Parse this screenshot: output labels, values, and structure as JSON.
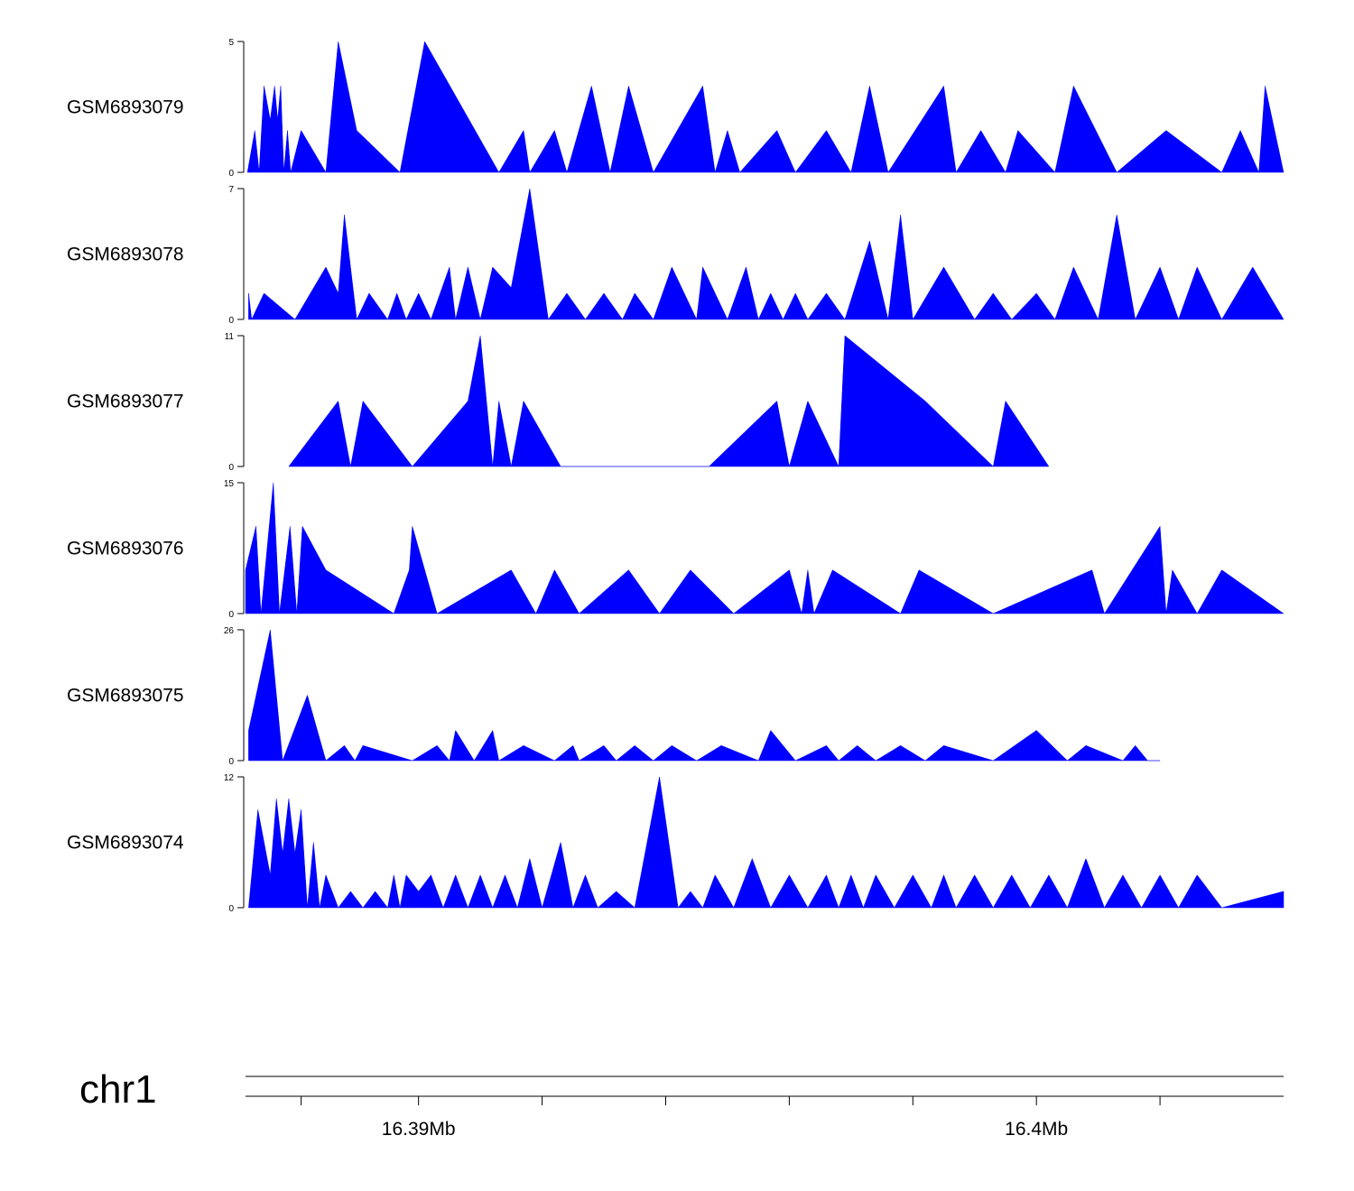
{
  "chart_data": {
    "type": "area",
    "fill_color": "#0000ff",
    "chromosome": "chr1",
    "x_range_mb": [
      16.3872,
      16.404
    ],
    "x_ticks": [
      {
        "value": 16.3881,
        "label": ""
      },
      {
        "value": 16.39,
        "label": "16.39Mb"
      },
      {
        "value": 16.392,
        "label": ""
      },
      {
        "value": 16.394,
        "label": ""
      },
      {
        "value": 16.396,
        "label": ""
      },
      {
        "value": 16.398,
        "label": ""
      },
      {
        "value": 16.4,
        "label": "16.4Mb"
      },
      {
        "value": 16.402,
        "label": ""
      }
    ],
    "tracks": [
      {
        "name": "GSM6893079",
        "ymax": 5,
        "ymin_label": "0",
        "ymax_label": "5",
        "x": [
          16.38723,
          16.38735,
          16.38742,
          16.3875,
          16.3876,
          16.38767,
          16.38772,
          16.38777,
          16.38782,
          16.38788,
          16.38793,
          16.3881,
          16.3885,
          16.3887,
          16.389,
          16.3897,
          16.3901,
          16.3913,
          16.3917,
          16.3918,
          16.3922,
          16.3924,
          16.3928,
          16.3931,
          16.3934,
          16.3938,
          16.3946,
          16.3948,
          16.395,
          16.3952,
          16.3958,
          16.3961,
          16.3966,
          16.397,
          16.3973,
          16.3976,
          16.3985,
          16.3987,
          16.3991,
          16.3995,
          16.3997,
          16.4003,
          16.4006,
          16.4013,
          16.4021,
          16.403,
          16.4033,
          16.4036,
          16.4037,
          16.404
        ],
        "y": [
          0,
          1.6,
          0,
          3.3,
          2,
          3.3,
          2,
          3.3,
          0,
          1.6,
          0,
          1.6,
          0,
          5,
          1.6,
          0,
          5,
          0,
          1.6,
          0,
          1.6,
          0,
          3.3,
          0,
          3.3,
          0,
          3.3,
          0,
          1.6,
          0,
          1.6,
          0,
          1.6,
          0,
          3.3,
          0,
          3.3,
          0,
          1.6,
          0,
          1.6,
          0,
          3.3,
          0,
          1.6,
          0,
          1.6,
          0,
          3.3,
          0
        ]
      },
      {
        "name": "GSM6893078",
        "ymax": 7,
        "ymin_label": "0",
        "ymax_label": "7",
        "x": [
          16.38725,
          16.3873,
          16.3875,
          16.388,
          16.3885,
          16.3887,
          16.3888,
          16.389,
          16.3892,
          16.3895,
          16.38965,
          16.3898,
          16.39,
          16.3902,
          16.3905,
          16.3906,
          16.3908,
          16.391,
          16.3912,
          16.3915,
          16.3918,
          16.3921,
          16.3924,
          16.3927,
          16.393,
          16.3933,
          16.3935,
          16.3938,
          16.3941,
          16.3945,
          16.3946,
          16.395,
          16.3953,
          16.3955,
          16.3957,
          16.3959,
          16.3961,
          16.3963,
          16.3966,
          16.3969,
          16.3973,
          16.3976,
          16.3978,
          16.398,
          16.3985,
          16.399,
          16.3993,
          16.3996,
          16.4,
          16.4003,
          16.4006,
          16.401,
          16.4013,
          16.4016,
          16.402,
          16.4023,
          16.4026,
          16.403,
          16.4035,
          16.404
        ],
        "y": [
          1.4,
          0,
          1.4,
          0,
          2.8,
          1.4,
          5.6,
          0,
          1.4,
          0,
          1.4,
          0,
          1.4,
          0,
          2.8,
          0,
          2.8,
          0,
          2.8,
          1.7,
          7,
          0,
          1.4,
          0,
          1.4,
          0,
          1.4,
          0,
          2.8,
          0,
          2.8,
          0,
          2.8,
          0,
          1.4,
          0,
          1.4,
          0,
          1.4,
          0,
          4.2,
          0,
          5.6,
          0,
          2.8,
          0,
          1.4,
          0,
          1.4,
          0,
          2.8,
          0,
          5.6,
          0,
          2.8,
          0,
          2.8,
          0,
          2.8,
          0
        ]
      },
      {
        "name": "GSM6893077",
        "ymax": 11,
        "ymin_label": "0",
        "ymax_label": "11",
        "x": [
          16.3879,
          16.3887,
          16.3889,
          16.3891,
          16.3899,
          16.3908,
          16.391,
          16.3912,
          16.3913,
          16.3915,
          16.3917,
          16.3923,
          16.3947,
          16.3958,
          16.396,
          16.3963,
          16.3968,
          16.3969,
          16.3982,
          16.3993,
          16.3995,
          16.4002
        ],
        "y": [
          0,
          5.5,
          0,
          5.5,
          0,
          5.5,
          11,
          0,
          5.5,
          0,
          5.5,
          0,
          0,
          5.5,
          0,
          5.5,
          0,
          11,
          5.5,
          0,
          5.5,
          0
        ]
      },
      {
        "name": "GSM6893076",
        "ymax": 15,
        "ymin_label": "0",
        "ymax_label": "15",
        "x": [
          16.3872,
          16.38737,
          16.38745,
          16.38765,
          16.38775,
          16.38792,
          16.38803,
          16.38812,
          16.3885,
          16.3896,
          16.38985,
          16.3899,
          16.3903,
          16.3915,
          16.3919,
          16.3922,
          16.3926,
          16.3934,
          16.3939,
          16.3944,
          16.3951,
          16.396,
          16.3962,
          16.3963,
          16.3964,
          16.3967,
          16.3978,
          16.3981,
          16.3993,
          16.4009,
          16.4011,
          16.402,
          16.4021,
          16.4022,
          16.4026,
          16.403,
          16.404
        ],
        "y": [
          5,
          10,
          0,
          15,
          0,
          10,
          0,
          10,
          5,
          0,
          5,
          10,
          0,
          5,
          0,
          5,
          0,
          5,
          0,
          5,
          0,
          5,
          0,
          5,
          0,
          5,
          0,
          5,
          0,
          5,
          0,
          10,
          0,
          5,
          0,
          5,
          0
        ]
      },
      {
        "name": "GSM6893075",
        "ymax": 26,
        "ymin_label": "0",
        "ymax_label": "26",
        "x": [
          16.38725,
          16.3876,
          16.3878,
          16.3882,
          16.3885,
          16.3888,
          16.38897,
          16.3891,
          16.3899,
          16.3903,
          16.3905,
          16.3906,
          16.3909,
          16.3912,
          16.3913,
          16.3917,
          16.3922,
          16.3925,
          16.3926,
          16.393,
          16.3932,
          16.3935,
          16.3938,
          16.3941,
          16.3945,
          16.3949,
          16.3955,
          16.3957,
          16.3961,
          16.3966,
          16.3968,
          16.3971,
          16.3974,
          16.3978,
          16.3982,
          16.3985,
          16.3993,
          16.4,
          16.4005,
          16.4008,
          16.4014,
          16.4016,
          16.4018,
          16.402
        ],
        "y": [
          6,
          26,
          0,
          13,
          0,
          3,
          0,
          3,
          0,
          3,
          0,
          6,
          0,
          6,
          0,
          3,
          0,
          3,
          0,
          3,
          0,
          3,
          0,
          3,
          0,
          3,
          0,
          6,
          0,
          3,
          0,
          3,
          0,
          3,
          0,
          3,
          0,
          6,
          0,
          3,
          0,
          3,
          0,
          0
        ]
      },
      {
        "name": "GSM6893074",
        "ymax": 12,
        "ymin_label": "0",
        "ymax_label": "12",
        "x": [
          16.38725,
          16.3874,
          16.3876,
          16.3877,
          16.3878,
          16.3879,
          16.388,
          16.3881,
          16.3882,
          16.3883,
          16.3884,
          16.3885,
          16.3887,
          16.3889,
          16.3891,
          16.3893,
          16.3895,
          16.3896,
          16.3897,
          16.3898,
          16.39,
          16.3902,
          16.3904,
          16.3906,
          16.3908,
          16.391,
          16.3912,
          16.3914,
          16.3916,
          16.3918,
          16.392,
          16.3923,
          16.3925,
          16.3927,
          16.3929,
          16.3932,
          16.3935,
          16.3937,
          16.3939,
          16.3942,
          16.3944,
          16.3946,
          16.3948,
          16.3951,
          16.3954,
          16.3957,
          16.396,
          16.3963,
          16.3966,
          16.3968,
          16.397,
          16.3972,
          16.3974,
          16.3977,
          16.398,
          16.3983,
          16.3985,
          16.3987,
          16.399,
          16.3993,
          16.3996,
          16.3999,
          16.4002,
          16.4005,
          16.4008,
          16.4011,
          16.4014,
          16.4017,
          16.402,
          16.4023,
          16.4026,
          16.403,
          16.404
        ],
        "y": [
          0,
          9,
          3,
          10,
          5,
          10,
          5,
          9,
          0,
          6,
          0,
          3,
          0,
          1.5,
          0,
          1.5,
          0,
          3,
          0,
          3,
          1.5,
          3,
          0,
          3,
          0,
          3,
          0,
          3,
          0,
          4.5,
          0,
          6,
          0,
          3,
          0,
          1.5,
          0,
          6,
          12,
          0,
          1.5,
          0,
          3,
          0,
          4.5,
          0,
          3,
          0,
          3,
          0,
          3,
          0,
          3,
          0,
          3,
          0,
          3,
          0,
          3,
          0,
          3,
          0,
          3,
          0,
          4.5,
          0,
          3,
          0,
          3,
          0,
          3,
          0,
          1.5
        ]
      }
    ]
  }
}
